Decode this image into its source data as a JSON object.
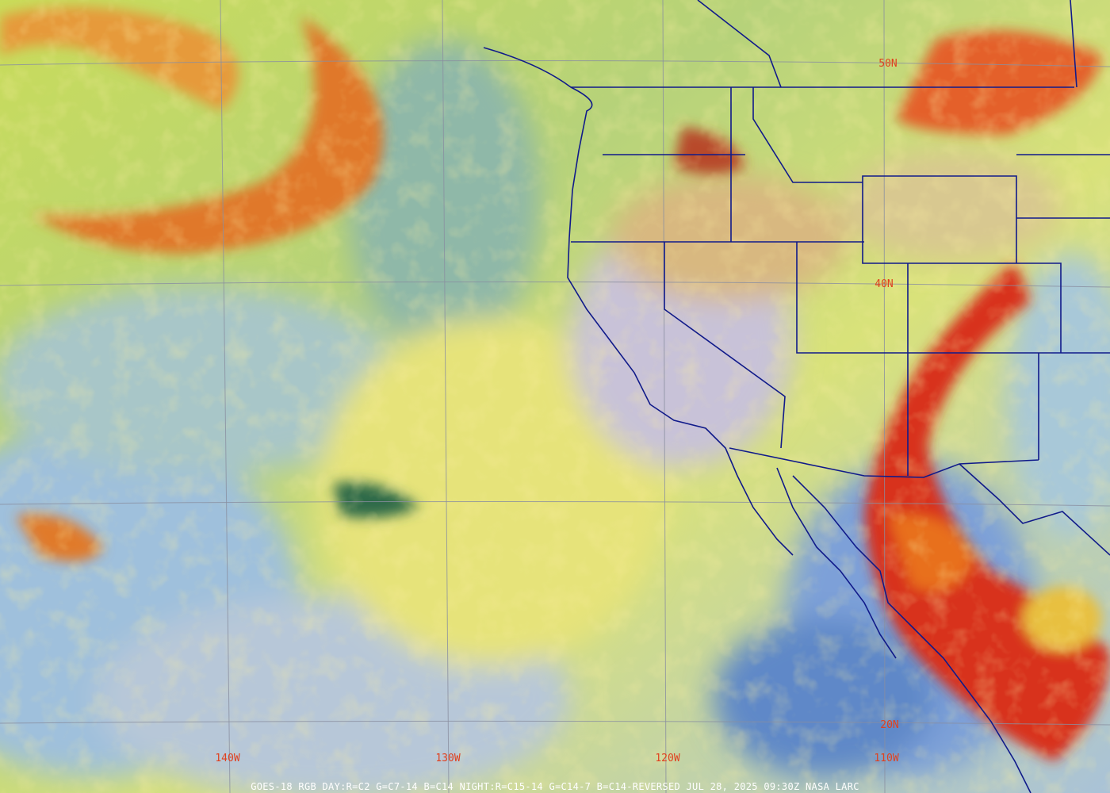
{
  "map": {
    "lat_labels": [
      "50N",
      "40N",
      "20N"
    ],
    "lon_labels": [
      "140W",
      "130W",
      "120W",
      "110W"
    ],
    "caption": "GOES-18 RGB   DAY:R=C2 G=C7-14 B=C14 NIGHT:R=C15-14 G=C14-7 B=C14-REVERSED   JUL 28, 2025 09:30Z NASA LARC"
  }
}
